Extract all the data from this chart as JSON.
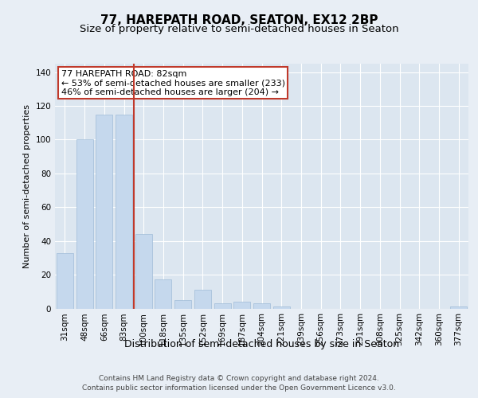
{
  "title": "77, HAREPATH ROAD, SEATON, EX12 2BP",
  "subtitle": "Size of property relative to semi-detached houses in Seaton",
  "xlabel": "Distribution of semi-detached houses by size in Seaton",
  "ylabel": "Number of semi-detached properties",
  "categories": [
    "31sqm",
    "48sqm",
    "66sqm",
    "83sqm",
    "100sqm",
    "118sqm",
    "135sqm",
    "152sqm",
    "169sqm",
    "187sqm",
    "204sqm",
    "221sqm",
    "239sqm",
    "256sqm",
    "273sqm",
    "291sqm",
    "308sqm",
    "325sqm",
    "342sqm",
    "360sqm",
    "377sqm"
  ],
  "values": [
    33,
    100,
    115,
    115,
    44,
    17,
    5,
    11,
    3,
    4,
    3,
    1,
    0,
    0,
    0,
    0,
    0,
    0,
    0,
    0,
    1
  ],
  "bar_color": "#c5d8ed",
  "bar_edge_color": "#a0bcd8",
  "vline_color": "#c0392b",
  "annotation_text": "77 HAREPATH ROAD: 82sqm\n← 53% of semi-detached houses are smaller (233)\n46% of semi-detached houses are larger (204) →",
  "annotation_box_color": "white",
  "annotation_box_edge_color": "#c0392b",
  "ylim": [
    0,
    145
  ],
  "yticks": [
    0,
    20,
    40,
    60,
    80,
    100,
    120,
    140
  ],
  "background_color": "#e8eef5",
  "plot_background_color": "#dce6f0",
  "footer_line1": "Contains HM Land Registry data © Crown copyright and database right 2024.",
  "footer_line2": "Contains public sector information licensed under the Open Government Licence v3.0.",
  "title_fontsize": 11,
  "subtitle_fontsize": 9.5,
  "xlabel_fontsize": 9,
  "ylabel_fontsize": 8,
  "tick_fontsize": 7.5,
  "footer_fontsize": 6.5,
  "annot_fontsize": 8
}
